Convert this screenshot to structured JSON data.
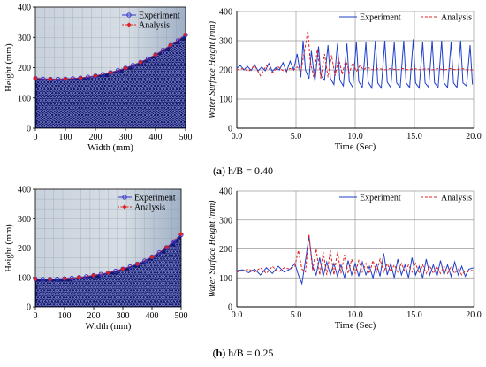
{
  "panels": [
    {
      "caption_letter": "a",
      "caption_text": " h/B = 0.40",
      "profile": {
        "type": "scatter",
        "xlabel": "Width (mm)",
        "ylabel": "Height (mm)",
        "xlim": [
          0,
          500
        ],
        "ylim": [
          0,
          400
        ],
        "xticks": [
          0,
          100,
          200,
          300,
          400,
          500
        ],
        "yticks": [
          0,
          100,
          200,
          300,
          400
        ],
        "series": [
          {
            "name": "Experiment",
            "color": "#3333cc",
            "x": [
              0,
              25,
              50,
              75,
              100,
              125,
              150,
              175,
              200,
              225,
              250,
              275,
              300,
              325,
              350,
              375,
              400,
              425,
              450,
              475,
              500
            ],
            "y": [
              165,
              163,
              162,
              162,
              163,
              164,
              166,
              169,
              173,
              178,
              184,
              191,
              199,
              208,
              218,
              230,
              243,
              258,
              274,
              290,
              308
            ]
          },
          {
            "name": "Analysis",
            "color": "#e02020",
            "x": [
              0,
              50,
              100,
              150,
              200,
              250,
              300,
              350,
              400,
              450,
              500
            ],
            "y": [
              165,
              162,
              163,
              166,
              173,
              184,
              198,
              218,
              243,
              274,
              310
            ]
          }
        ]
      },
      "timeseries": {
        "type": "line",
        "xlabel": "Time (Sec)",
        "ylabel": "Water Surface Height (mm)",
        "xlim": [
          0,
          20
        ],
        "ylim": [
          0,
          400
        ],
        "xticks": [
          0.0,
          5.0,
          10.0,
          15.0,
          20.0
        ],
        "yticks": [
          0,
          100,
          200,
          300,
          400
        ],
        "series": [
          {
            "name": "Experiment",
            "color": "#1f3fcc",
            "dash": "",
            "x": [
              0.0,
              0.3,
              0.6,
              0.9,
              1.2,
              1.5,
              1.8,
              2.1,
              2.4,
              2.7,
              3.0,
              3.3,
              3.6,
              3.9,
              4.2,
              4.5,
              4.8,
              5.1,
              5.4,
              5.6,
              5.8,
              6.1,
              6.3,
              6.6,
              6.9,
              7.1,
              7.4,
              7.7,
              7.9,
              8.2,
              8.5,
              8.7,
              9.0,
              9.3,
              9.5,
              9.8,
              10.1,
              10.3,
              10.6,
              10.9,
              11.1,
              11.4,
              11.7,
              11.9,
              12.2,
              12.5,
              12.7,
              13.0,
              13.3,
              13.5,
              13.8,
              14.1,
              14.3,
              14.6,
              14.9,
              15.1,
              15.4,
              15.7,
              15.9,
              16.2,
              16.5,
              16.7,
              17.0,
              17.3,
              17.5,
              17.8,
              18.1,
              18.3,
              18.6,
              18.9,
              19.1,
              19.4,
              19.7,
              19.9
            ],
            "y": [
              205,
              215,
              200,
              212,
              198,
              218,
              196,
              210,
              197,
              222,
              195,
              208,
              200,
              225,
              193,
              230,
              200,
              255,
              175,
              300,
              200,
              170,
              265,
              160,
              280,
              180,
              165,
              285,
              170,
              150,
              290,
              165,
              145,
              290,
              160,
              140,
              295,
              160,
              140,
              295,
              158,
              138,
              300,
              155,
              138,
              300,
              158,
              140,
              295,
              155,
              140,
              300,
              155,
              140,
              305,
              155,
              138,
              295,
              155,
              140,
              300,
              155,
              140,
              300,
              155,
              140,
              295,
              155,
              140,
              300,
              155,
              145,
              285,
              150
            ]
          },
          {
            "name": "Analysis",
            "color": "#e02020",
            "dash": "3,2",
            "x": [
              0.0,
              0.5,
              1.0,
              1.5,
              2.0,
              2.5,
              3.0,
              3.5,
              4.0,
              4.5,
              4.8,
              5.1,
              5.4,
              5.7,
              6.0,
              6.2,
              6.5,
              6.8,
              7.1,
              7.4,
              7.7,
              8.0,
              8.3,
              8.6,
              8.9,
              9.2,
              9.5,
              9.8,
              10.1,
              10.4,
              10.7,
              11.0,
              11.5,
              12.0,
              12.5,
              13.0,
              13.5,
              14.0,
              14.5,
              15.0,
              15.5,
              16.0,
              16.5,
              17.0,
              17.5,
              18.0,
              18.5,
              19.0,
              19.5,
              20.0
            ],
            "y": [
              200,
              205,
              195,
              215,
              180,
              215,
              190,
              210,
              195,
              205,
              200,
              210,
              195,
              260,
              335,
              230,
              175,
              270,
              170,
              255,
              175,
              250,
              180,
              240,
              185,
              235,
              190,
              225,
              195,
              215,
              200,
              210,
              200,
              205,
              200,
              205,
              200,
              205,
              200,
              205,
              200,
              205,
              200,
              205,
              200,
              205,
              200,
              205,
              200,
              200
            ]
          }
        ]
      }
    },
    {
      "caption_letter": "b",
      "caption_text": " h/B = 0.25",
      "profile": {
        "type": "scatter",
        "xlabel": "Width (mm)",
        "ylabel": "Height (mm)",
        "xlim": [
          0,
          500
        ],
        "ylim": [
          0,
          400
        ],
        "xticks": [
          0,
          100,
          200,
          300,
          400,
          500
        ],
        "yticks": [
          0,
          100,
          200,
          300,
          400
        ],
        "series": [
          {
            "name": "Experiment",
            "color": "#3333cc",
            "x": [
              0,
              25,
              50,
              75,
              100,
              125,
              150,
              175,
              200,
              225,
              250,
              275,
              300,
              325,
              350,
              375,
              400,
              425,
              450,
              475,
              500
            ],
            "y": [
              95,
              94,
              94,
              95,
              96,
              98,
              100,
              103,
              107,
              111,
              116,
              122,
              129,
              137,
              146,
              157,
              170,
              185,
              202,
              222,
              245
            ]
          },
          {
            "name": "Analysis",
            "color": "#e02020",
            "x": [
              0,
              50,
              100,
              150,
              200,
              250,
              300,
              350,
              400,
              450,
              500
            ],
            "y": [
              95,
              94,
              96,
              100,
              107,
              116,
              129,
              146,
              170,
              202,
              248
            ]
          }
        ]
      },
      "timeseries": {
        "type": "line",
        "xlabel": "Time (Sec)",
        "ylabel": "Water Surface Height (mm)",
        "xlim": [
          0,
          20
        ],
        "ylim": [
          0,
          400
        ],
        "xticks": [
          0.0,
          5.0,
          10.0,
          15.0,
          20.0
        ],
        "yticks": [
          0,
          100,
          200,
          300,
          400
        ],
        "series": [
          {
            "name": "Experiment",
            "color": "#1f3fcc",
            "dash": "",
            "x": [
              0.0,
              0.5,
              1.0,
              1.5,
              2.0,
              2.5,
              3.0,
              3.5,
              4.0,
              4.5,
              4.9,
              5.2,
              5.5,
              5.8,
              6.1,
              6.4,
              6.7,
              7.0,
              7.3,
              7.6,
              7.9,
              8.2,
              8.5,
              8.8,
              9.1,
              9.4,
              9.7,
              10.0,
              10.3,
              10.6,
              10.9,
              11.2,
              11.5,
              11.8,
              12.1,
              12.4,
              12.7,
              13.0,
              13.3,
              13.6,
              13.9,
              14.2,
              14.5,
              14.8,
              15.1,
              15.4,
              15.7,
              16.0,
              16.3,
              16.6,
              16.9,
              17.2,
              17.5,
              17.8,
              18.1,
              18.4,
              18.7,
              19.0,
              19.3,
              19.6,
              20.0
            ],
            "y": [
              125,
              128,
              118,
              130,
              110,
              135,
              115,
              140,
              120,
              130,
              150,
              110,
              80,
              160,
              245,
              140,
              110,
              170,
              105,
              155,
              110,
              150,
              105,
              145,
              100,
              160,
              110,
              150,
              105,
              155,
              110,
              140,
              100,
              150,
              105,
              185,
              110,
              150,
              100,
              165,
              110,
              145,
              100,
              170,
              110,
              140,
              100,
              165,
              110,
              145,
              105,
              160,
              110,
              145,
              105,
              155,
              110,
              140,
              105,
              130,
              135
            ]
          },
          {
            "name": "Analysis",
            "color": "#e02020",
            "dash": "3,2",
            "x": [
              0.0,
              0.5,
              1.0,
              1.5,
              2.0,
              2.5,
              3.0,
              3.5,
              4.0,
              4.5,
              4.9,
              5.2,
              5.5,
              5.8,
              6.1,
              6.4,
              6.7,
              7.0,
              7.3,
              7.6,
              7.9,
              8.2,
              8.5,
              8.8,
              9.1,
              9.4,
              9.7,
              10.0,
              10.3,
              10.6,
              10.9,
              11.2,
              11.5,
              11.8,
              12.1,
              12.4,
              12.7,
              13.0,
              13.3,
              13.6,
              13.9,
              14.2,
              14.5,
              14.8,
              15.1,
              15.4,
              15.7,
              16.0,
              16.3,
              16.6,
              16.9,
              17.2,
              17.5,
              17.8,
              18.1,
              18.4,
              18.7,
              19.0,
              19.3,
              19.6,
              20.0
            ],
            "y": [
              120,
              125,
              130,
              120,
              135,
              115,
              140,
              120,
              135,
              130,
              140,
              195,
              130,
              120,
              250,
              125,
              200,
              110,
              190,
              110,
              195,
              110,
              190,
              115,
              180,
              115,
              165,
              115,
              160,
              120,
              150,
              115,
              160,
              120,
              165,
              120,
              150,
              120,
              145,
              120,
              150,
              120,
              145,
              120,
              150,
              115,
              145,
              115,
              140,
              115,
              140,
              115,
              140,
              115,
              140,
              115,
              130,
              110,
              125,
              120,
              130
            ]
          }
        ]
      }
    }
  ]
}
